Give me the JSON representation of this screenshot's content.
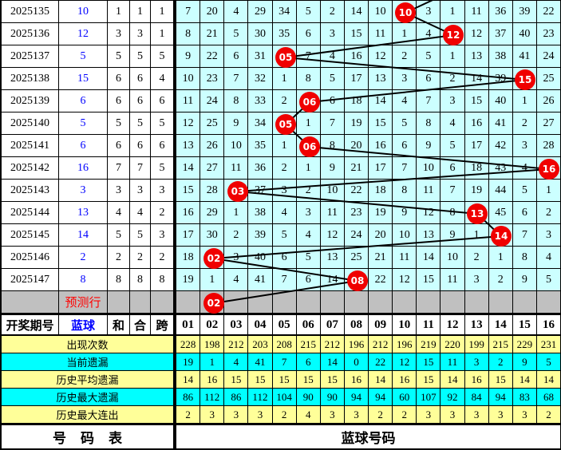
{
  "colors": {
    "grid_bg": "#CCFFFF",
    "stats_yellow": "#FFFF99",
    "stats_cyan": "#00FFFF",
    "prediction_gray": "#C0C0C0",
    "circle_red": "#F00000",
    "blue_text": "#0000FF",
    "red_text": "#FF0000",
    "line_black": "#000000"
  },
  "left_header": {
    "period": "开奖期号",
    "blue": "蓝球",
    "he": "和",
    "hehe": "合",
    "kua": "跨"
  },
  "column_headers": [
    "01",
    "02",
    "03",
    "04",
    "05",
    "06",
    "07",
    "08",
    "09",
    "10",
    "11",
    "12",
    "13",
    "14",
    "15",
    "16"
  ],
  "prediction": {
    "label": "预测行",
    "circle_col": 2,
    "circle_label": "02"
  },
  "entry_line_from_col": 12,
  "rows": [
    {
      "period": "2025135",
      "blue": "10",
      "he": "1",
      "hehe": "1",
      "kua": "1",
      "circle_col": 10,
      "circle_label": "10",
      "cells": [
        "7",
        "20",
        "4",
        "29",
        "34",
        "5",
        "2",
        "14",
        "10",
        "",
        "3",
        "1",
        "11",
        "36",
        "39",
        "22"
      ]
    },
    {
      "period": "2025136",
      "blue": "12",
      "he": "3",
      "hehe": "3",
      "kua": "1",
      "circle_col": 12,
      "circle_label": "12",
      "cells": [
        "8",
        "21",
        "5",
        "30",
        "35",
        "6",
        "3",
        "15",
        "11",
        "1",
        "4",
        "",
        "12",
        "37",
        "40",
        "23"
      ]
    },
    {
      "period": "2025137",
      "blue": "5",
      "he": "5",
      "hehe": "5",
      "kua": "5",
      "circle_col": 5,
      "circle_label": "05",
      "cells": [
        "9",
        "22",
        "6",
        "31",
        "",
        "7",
        "4",
        "16",
        "12",
        "2",
        "5",
        "1",
        "13",
        "38",
        "41",
        "24"
      ]
    },
    {
      "period": "2025138",
      "blue": "15",
      "he": "6",
      "hehe": "6",
      "kua": "4",
      "circle_col": 15,
      "circle_label": "15",
      "cells": [
        "10",
        "23",
        "7",
        "32",
        "1",
        "8",
        "5",
        "17",
        "13",
        "3",
        "6",
        "2",
        "14",
        "39",
        "",
        "25"
      ]
    },
    {
      "period": "2025139",
      "blue": "6",
      "he": "6",
      "hehe": "6",
      "kua": "6",
      "circle_col": 6,
      "circle_label": "06",
      "cells": [
        "11",
        "24",
        "8",
        "33",
        "2",
        "",
        "6",
        "18",
        "14",
        "4",
        "7",
        "3",
        "15",
        "40",
        "1",
        "26"
      ]
    },
    {
      "period": "2025140",
      "blue": "5",
      "he": "5",
      "hehe": "5",
      "kua": "5",
      "circle_col": 5,
      "circle_label": "05",
      "cells": [
        "12",
        "25",
        "9",
        "34",
        "",
        "1",
        "7",
        "19",
        "15",
        "5",
        "8",
        "4",
        "16",
        "41",
        "2",
        "27"
      ]
    },
    {
      "period": "2025141",
      "blue": "6",
      "he": "6",
      "hehe": "6",
      "kua": "6",
      "circle_col": 6,
      "circle_label": "06",
      "cells": [
        "13",
        "26",
        "10",
        "35",
        "1",
        "",
        "8",
        "20",
        "16",
        "6",
        "9",
        "5",
        "17",
        "42",
        "3",
        "28"
      ]
    },
    {
      "period": "2025142",
      "blue": "16",
      "he": "7",
      "hehe": "7",
      "kua": "5",
      "circle_col": 16,
      "circle_label": "16",
      "cells": [
        "14",
        "27",
        "11",
        "36",
        "2",
        "1",
        "9",
        "21",
        "17",
        "7",
        "10",
        "6",
        "18",
        "43",
        "4",
        ""
      ]
    },
    {
      "period": "2025143",
      "blue": "3",
      "he": "3",
      "hehe": "3",
      "kua": "3",
      "circle_col": 3,
      "circle_label": "03",
      "cells": [
        "15",
        "28",
        "",
        "37",
        "3",
        "2",
        "10",
        "22",
        "18",
        "8",
        "11",
        "7",
        "19",
        "44",
        "5",
        "1"
      ]
    },
    {
      "period": "2025144",
      "blue": "13",
      "he": "4",
      "hehe": "4",
      "kua": "2",
      "circle_col": 13,
      "circle_label": "13",
      "cells": [
        "16",
        "29",
        "1",
        "38",
        "4",
        "3",
        "11",
        "23",
        "19",
        "9",
        "12",
        "8",
        "",
        "45",
        "6",
        "2"
      ]
    },
    {
      "period": "2025145",
      "blue": "14",
      "he": "5",
      "hehe": "5",
      "kua": "3",
      "circle_col": 14,
      "circle_label": "14",
      "cells": [
        "17",
        "30",
        "2",
        "39",
        "5",
        "4",
        "12",
        "24",
        "20",
        "10",
        "13",
        "9",
        "1",
        "",
        "7",
        "3"
      ]
    },
    {
      "period": "2025146",
      "blue": "2",
      "he": "2",
      "hehe": "2",
      "kua": "2",
      "circle_col": 2,
      "circle_label": "02",
      "cells": [
        "18",
        "",
        "3",
        "40",
        "6",
        "5",
        "13",
        "25",
        "21",
        "11",
        "14",
        "10",
        "2",
        "1",
        "8",
        "4"
      ]
    },
    {
      "period": "2025147",
      "blue": "8",
      "he": "8",
      "hehe": "8",
      "kua": "8",
      "circle_col": 8,
      "circle_label": "08",
      "cells": [
        "19",
        "1",
        "4",
        "41",
        "7",
        "6",
        "14",
        "",
        "22",
        "12",
        "15",
        "11",
        "3",
        "2",
        "9",
        "5"
      ]
    }
  ],
  "stats": [
    {
      "label": "出现次数",
      "bg": "yellow",
      "values": [
        "228",
        "198",
        "212",
        "203",
        "208",
        "215",
        "212",
        "196",
        "212",
        "196",
        "219",
        "220",
        "199",
        "215",
        "229",
        "231"
      ]
    },
    {
      "label": "当前遗漏",
      "bg": "cyan",
      "values": [
        "19",
        "1",
        "4",
        "41",
        "7",
        "6",
        "14",
        "0",
        "22",
        "12",
        "15",
        "11",
        "3",
        "2",
        "9",
        "5"
      ]
    },
    {
      "label": "历史平均遗漏",
      "bg": "yellow",
      "values": [
        "14",
        "16",
        "15",
        "15",
        "15",
        "15",
        "15",
        "16",
        "14",
        "16",
        "15",
        "14",
        "16",
        "15",
        "14",
        "14"
      ]
    },
    {
      "label": "历史最大遗漏",
      "bg": "cyan",
      "values": [
        "86",
        "112",
        "86",
        "112",
        "104",
        "90",
        "90",
        "94",
        "94",
        "60",
        "107",
        "92",
        "84",
        "94",
        "83",
        "68"
      ]
    },
    {
      "label": "历史最大连出",
      "bg": "yellow",
      "values": [
        "2",
        "3",
        "3",
        "3",
        "2",
        "4",
        "3",
        "3",
        "2",
        "2",
        "3",
        "3",
        "3",
        "3",
        "3",
        "2"
      ]
    }
  ],
  "footer": {
    "left": "号码表",
    "right": "蓝球号码"
  }
}
